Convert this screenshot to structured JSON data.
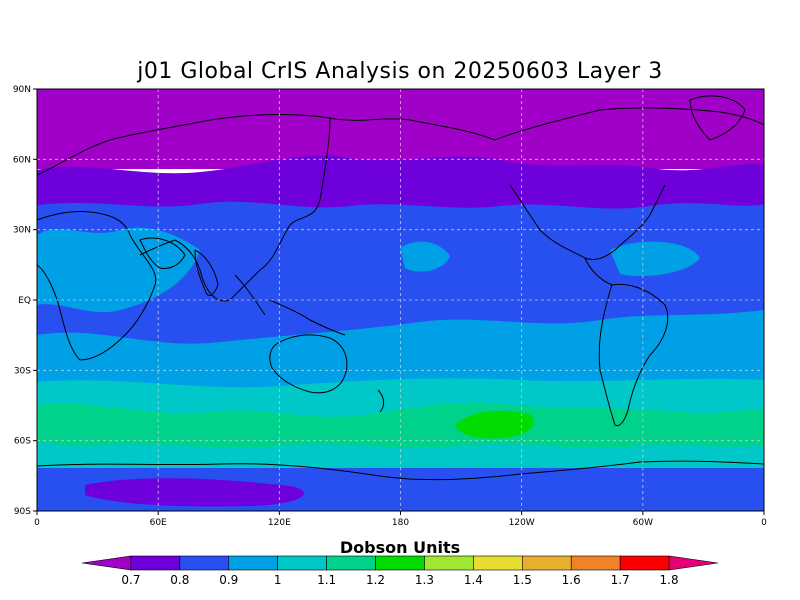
{
  "title": "j01 Global CrIS Analysis on 20250603 Layer 3",
  "map": {
    "projection": "equirectangular",
    "lon_range": [
      0,
      360
    ],
    "lat_range": [
      -90,
      90
    ],
    "lat_ticks": [
      {
        "value": 90,
        "label": "90N"
      },
      {
        "value": 60,
        "label": "60N"
      },
      {
        "value": 30,
        "label": "30N"
      },
      {
        "value": 0,
        "label": "EQ"
      },
      {
        "value": -30,
        "label": "30S"
      },
      {
        "value": -60,
        "label": "60S"
      },
      {
        "value": -90,
        "label": "90S"
      }
    ],
    "lon_ticks": [
      {
        "value": 0,
        "label": "0"
      },
      {
        "value": 60,
        "label": "60E"
      },
      {
        "value": 120,
        "label": "120E"
      },
      {
        "value": 180,
        "label": "180"
      },
      {
        "value": 240,
        "label": "120W"
      },
      {
        "value": 300,
        "label": "60W"
      },
      {
        "value": 360,
        "label": "0"
      }
    ],
    "gridlines": true
  },
  "colorbar": {
    "title": "Dobson Units",
    "levels": [
      "0.7",
      "0.8",
      "0.9",
      "1",
      "1.1",
      "1.2",
      "1.3",
      "1.4",
      "1.5",
      "1.6",
      "1.7",
      "1.8"
    ],
    "colors": [
      "#a000c8",
      "#6e00dc",
      "#2850f0",
      "#00a0e6",
      "#00c8c8",
      "#00d28c",
      "#00dc00",
      "#a0e632",
      "#e6dc32",
      "#e6af2d",
      "#f08228",
      "#fa0000",
      "#e60078"
    ]
  },
  "chart_data": {
    "type": "heatmap",
    "title": "j01 Global CrIS Analysis on 20250603 Layer 3",
    "units": "Dobson Units",
    "xlim": [
      0,
      360
    ],
    "ylim": [
      -90,
      90
    ],
    "latitude_bands": [
      {
        "lat": [
          75,
          90
        ],
        "value": 0.65
      },
      {
        "lat": [
          60,
          75
        ],
        "value": 0.7
      },
      {
        "lat": [
          45,
          60
        ],
        "value": 0.75
      },
      {
        "lat": [
          20,
          45
        ],
        "value": 0.85
      },
      {
        "lat": [
          -15,
          20
        ],
        "value": 0.9
      },
      {
        "lat": [
          -35,
          -15
        ],
        "value": 0.95
      },
      {
        "lat": [
          -48,
          -35
        ],
        "value": 1.05
      },
      {
        "lat": [
          -62,
          -48
        ],
        "value": 1.15
      },
      {
        "lat": [
          -70,
          -62
        ],
        "value": 1.05
      },
      {
        "lat": [
          -78,
          -70
        ],
        "value": 0.85
      },
      {
        "lat": [
          -90,
          -78
        ],
        "value": 0.75
      }
    ]
  }
}
